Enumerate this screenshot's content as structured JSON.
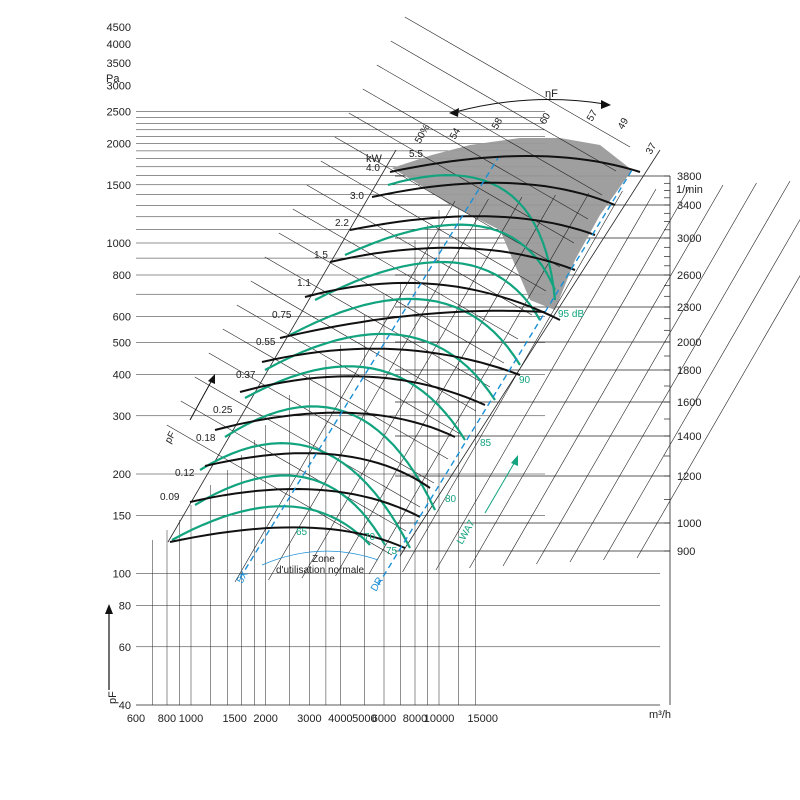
{
  "chart_data": {
    "type": "line",
    "subtype": "fan characteristic curves",
    "x_axis": {
      "unit_label": "m³/h",
      "scale": "log",
      "range": [
        600,
        17000
      ],
      "ticks": [
        600,
        800,
        1000,
        1500,
        2000,
        3000,
        4000,
        5000,
        6000,
        8000,
        10000,
        15000
      ]
    },
    "y_axis": {
      "unit_label": "Pa",
      "symbol": "pF",
      "scale": "log",
      "range": [
        40,
        4500
      ],
      "ticks": [
        40,
        60,
        80,
        100,
        150,
        200,
        300,
        400,
        500,
        600,
        800,
        1000,
        1500,
        2000,
        2500,
        3000,
        3500,
        4000,
        4500
      ]
    },
    "speed_axis": {
      "unit_label": "1/min",
      "ticks": [
        900,
        1000,
        1200,
        1400,
        1600,
        1800,
        2000,
        2300,
        2600,
        3000,
        3400,
        3800
      ]
    },
    "power_label": "kW",
    "power_ticks": [
      "0.09",
      "0.12",
      "0.18",
      "0.25",
      "0.37",
      "0.55",
      "0.75",
      "1.1",
      "1.5",
      "2.2",
      "3.0",
      "4.0",
      "5.5"
    ],
    "efficiency_label": "ηF",
    "efficiency_ticks": [
      "50%",
      "54",
      "58",
      "60",
      "57",
      "49",
      "37"
    ],
    "sound_label": "LWA7",
    "sound_ticks": [
      "65",
      "70",
      "75",
      "80",
      "85",
      "90",
      "95 dB"
    ],
    "zone_label": [
      "Zone",
      "d'utilisation normale"
    ],
    "pressure_axis_arrow_label": "pF",
    "diagonal_axis_label": "pF",
    "dashed_line_labels": [
      "5X",
      "DR"
    ],
    "speed_curves_rpm": [
      900,
      1000,
      1200,
      1400,
      1600,
      1800,
      2000,
      2300,
      2600,
      3000,
      3400,
      3800
    ],
    "colors": {
      "pressure_curves": "#111111",
      "power_curves": "#12a37f",
      "limits": "#1b8fd6",
      "restricted_area": "#9a9a9a",
      "grid": "#222222"
    }
  }
}
